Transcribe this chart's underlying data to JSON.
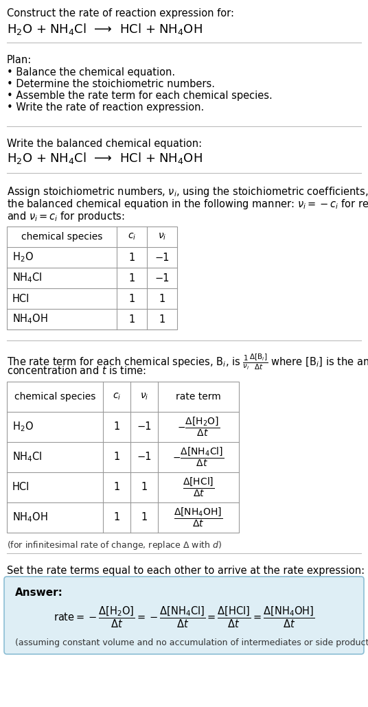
{
  "title_line1": "Construct the rate of reaction expression for:",
  "reaction_header": "H$_2$O + NH$_4$Cl  ⟶  HCl + NH$_4$OH",
  "plan_header": "Plan:",
  "plan_items": [
    "• Balance the chemical equation.",
    "• Determine the stoichiometric numbers.",
    "• Assemble the rate term for each chemical species.",
    "• Write the rate of reaction expression."
  ],
  "balanced_header": "Write the balanced chemical equation:",
  "balanced_eq": "H$_2$O + NH$_4$Cl  ⟶  HCl + NH$_4$OH",
  "stoich_intro_parts": [
    "Assign stoichiometric numbers, $\\nu_i$, using the stoichiometric coefficients, $c_i$, from",
    "the balanced chemical equation in the following manner: $\\nu_i = -c_i$ for reactants",
    "and $\\nu_i = c_i$ for products:"
  ],
  "table1_headers": [
    "chemical species",
    "$c_i$",
    "$\\nu_i$"
  ],
  "table1_rows": [
    [
      "H$_2$O",
      "1",
      "−1"
    ],
    [
      "NH$_4$Cl",
      "1",
      "−1"
    ],
    [
      "HCl",
      "1",
      "1"
    ],
    [
      "NH$_4$OH",
      "1",
      "1"
    ]
  ],
  "rate_term_intro_parts": [
    "The rate term for each chemical species, B$_i$, is $\\frac{1}{\\nu_i}\\frac{\\Delta[\\mathrm{B}_i]}{\\Delta t}$ where [B$_i$] is the amount",
    "concentration and $t$ is time:"
  ],
  "table2_headers": [
    "chemical species",
    "$c_i$",
    "$\\nu_i$",
    "rate term"
  ],
  "table2_rows": [
    [
      "H$_2$O",
      "1",
      "−1",
      "$-\\dfrac{\\Delta[\\mathrm{H_2O}]}{\\Delta t}$"
    ],
    [
      "NH$_4$Cl",
      "1",
      "−1",
      "$-\\dfrac{\\Delta[\\mathrm{NH_4Cl}]}{\\Delta t}$"
    ],
    [
      "HCl",
      "1",
      "1",
      "$\\dfrac{\\Delta[\\mathrm{HCl}]}{\\Delta t}$"
    ],
    [
      "NH$_4$OH",
      "1",
      "1",
      "$\\dfrac{\\Delta[\\mathrm{NH_4OH}]}{\\Delta t}$"
    ]
  ],
  "infinitesimal_note": "(for infinitesimal rate of change, replace Δ with $d$)",
  "set_equal_text": "Set the rate terms equal to each other to arrive at the rate expression:",
  "answer_label": "Answer:",
  "rate_expression": "$\\mathrm{rate} = -\\dfrac{\\Delta[\\mathrm{H_2O}]}{\\Delta t} = -\\dfrac{\\Delta[\\mathrm{NH_4Cl}]}{\\Delta t} = \\dfrac{\\Delta[\\mathrm{HCl}]}{\\Delta t} = \\dfrac{\\Delta[\\mathrm{NH_4OH}]}{\\Delta t}$",
  "assumption_note": "(assuming constant volume and no accumulation of intermediates or side products)",
  "answer_bg_color": "#deeef5",
  "answer_border_color": "#8bbdd4",
  "bg_color": "#ffffff",
  "text_color": "#000000",
  "separator_color": "#bbbbbb"
}
